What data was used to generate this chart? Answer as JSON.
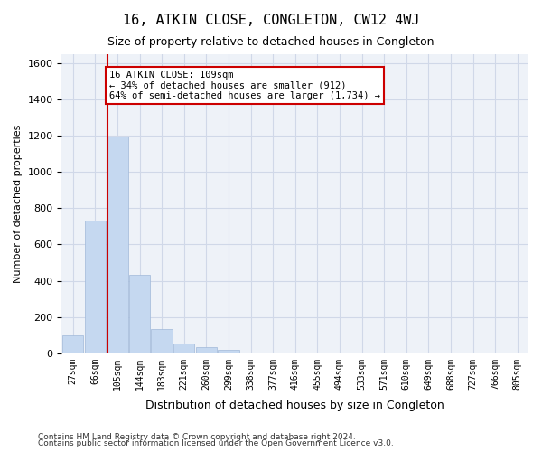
{
  "title": "16, ATKIN CLOSE, CONGLETON, CW12 4WJ",
  "subtitle": "Size of property relative to detached houses in Congleton",
  "xlabel": "Distribution of detached houses by size in Congleton",
  "ylabel": "Number of detached properties",
  "bin_labels": [
    "27sqm",
    "66sqm",
    "105sqm",
    "144sqm",
    "183sqm",
    "221sqm",
    "260sqm",
    "299sqm",
    "338sqm",
    "377sqm",
    "416sqm",
    "455sqm",
    "494sqm",
    "533sqm",
    "571sqm",
    "610sqm",
    "649sqm",
    "688sqm",
    "727sqm",
    "766sqm",
    "805sqm"
  ],
  "bar_values": [
    100,
    730,
    1195,
    435,
    135,
    52,
    32,
    18,
    0,
    0,
    0,
    0,
    0,
    0,
    0,
    0,
    0,
    0,
    0,
    0,
    0
  ],
  "bar_color": "#c5d8f0",
  "bar_edge_color": "#a0b8d8",
  "vline_color": "#cc0000",
  "annotation_text": "16 ATKIN CLOSE: 109sqm\n← 34% of detached houses are smaller (912)\n64% of semi-detached houses are larger (1,734) →",
  "annotation_box_color": "#ffffff",
  "annotation_box_edge": "#cc0000",
  "ylim": [
    0,
    1650
  ],
  "yticks": [
    0,
    200,
    400,
    600,
    800,
    1000,
    1200,
    1400,
    1600
  ],
  "grid_color": "#d0d8e8",
  "bg_color": "#eef2f8",
  "footer1": "Contains HM Land Registry data © Crown copyright and database right 2024.",
  "footer2": "Contains public sector information licensed under the Open Government Licence v3.0."
}
